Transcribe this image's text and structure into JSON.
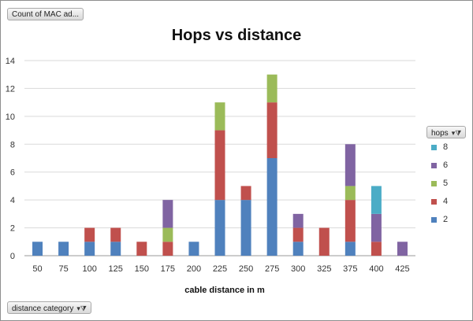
{
  "buttons": {
    "values_field": "Count of MAC ad...",
    "axis_field": "distance category",
    "legend_field": "hops"
  },
  "colors": {
    "2": "#4f81bd",
    "4": "#c0504d",
    "5": "#9bbb59",
    "6": "#8064a2",
    "8": "#4bacc6"
  },
  "chart_data": {
    "type": "bar",
    "stacked": true,
    "title": "Hops vs distance",
    "xlabel": "cable distance in m",
    "ylabel": "",
    "ylim": [
      0,
      14
    ],
    "yticks": [
      0,
      2,
      4,
      6,
      8,
      10,
      12,
      14
    ],
    "grid": true,
    "legend": {
      "title": "hops",
      "position": "right"
    },
    "categories": [
      "50",
      "75",
      "100",
      "125",
      "150",
      "175",
      "200",
      "225",
      "250",
      "275",
      "300",
      "325",
      "375",
      "400",
      "425"
    ],
    "series": [
      {
        "name": "2",
        "values": [
          1,
          1,
          1,
          1,
          0,
          0,
          1,
          4,
          4,
          7,
          1,
          0,
          1,
          0,
          0
        ]
      },
      {
        "name": "4",
        "values": [
          0,
          0,
          1,
          1,
          1,
          1,
          0,
          5,
          1,
          4,
          1,
          2,
          3,
          1,
          0
        ]
      },
      {
        "name": "5",
        "values": [
          0,
          0,
          0,
          0,
          0,
          1,
          0,
          2,
          0,
          2,
          0,
          0,
          1,
          0,
          0
        ]
      },
      {
        "name": "6",
        "values": [
          0,
          0,
          0,
          0,
          0,
          2,
          0,
          0,
          0,
          0,
          1,
          0,
          3,
          2,
          1
        ]
      },
      {
        "name": "8",
        "values": [
          0,
          0,
          0,
          0,
          0,
          0,
          0,
          0,
          0,
          0,
          0,
          0,
          0,
          2,
          0
        ]
      }
    ]
  }
}
